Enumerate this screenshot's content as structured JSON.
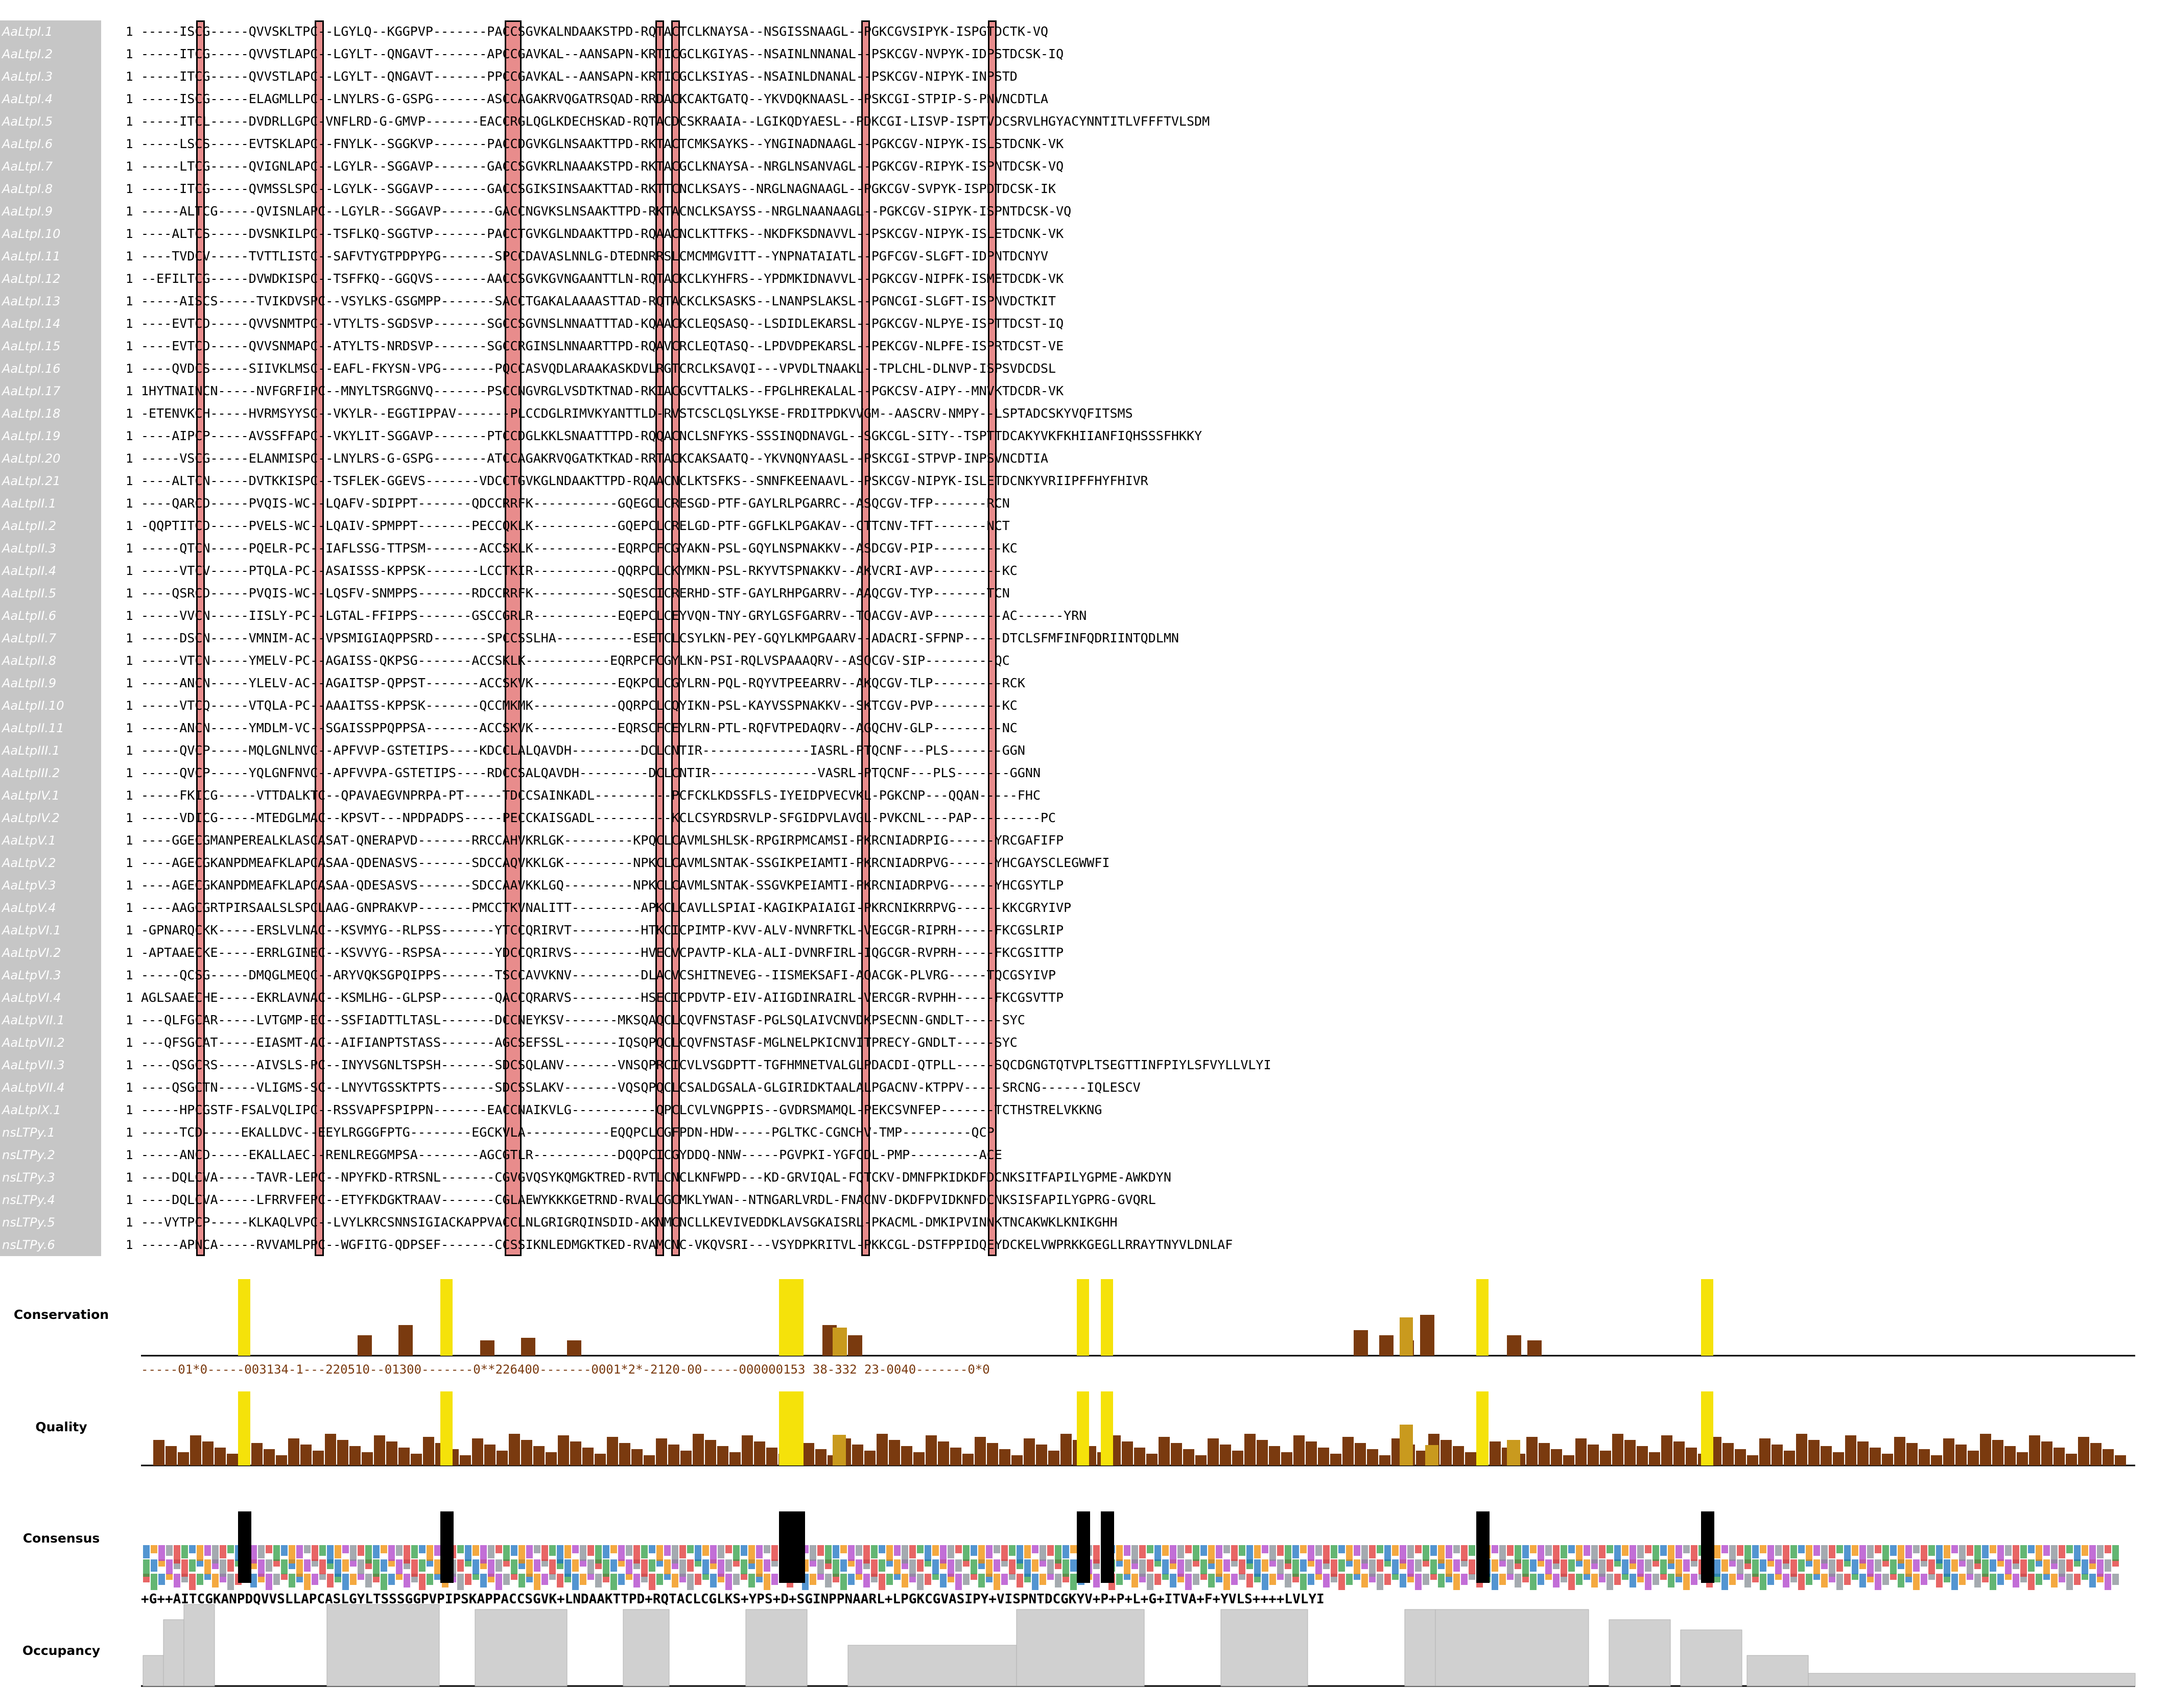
{
  "alignment": {
    "start_number": "1",
    "rows": [
      {
        "name": "AaLtpI.1",
        "seq": "-----ISCG-----QVVSKLTPC--LGYLQ--KGGPVP-------PACCSGVKALNDAAKSTPD-RQTACTCLKNAYSA--NSGISSNAAGL--PGKCGVSIPYK-ISPGTDCTK-VQ"
      },
      {
        "name": "AaLtpI.2",
        "seq": "-----ITCG-----QVVSTLAPC--LGYLT--QNGAVT-------APCCGAVKAL--AANSAPN-KRTICGCLKGIYAS--NSAINLNNANAL--PSKCGV-NVPYK-IDPSTDCSK-IQ"
      },
      {
        "name": "AaLtpI.3",
        "seq": "-----ITCG-----QVVSTLAPC--LGYLT--QNGAVT-------PPCCGAVKAL--AANSAPN-KRTICGCLKSIYAS--NSAINLDNANAL--PSKCGV-NIPYK-INPSTD"
      },
      {
        "name": "AaLtpI.4",
        "seq": "-----ISCG-----ELAGMLLPC--LNYLRS-G-GSPG-------ASCCAGAKRVQGATRSQAD-RRDACKCAKTGATQ--YKVDQKNAASL--PSKCGI-STPIP-S-PNVNCDTLA"
      },
      {
        "name": "AaLtpI.5",
        "seq": "-----ITCL-----DVDRLLGPC-VNFLRD-G-GMVP-------EACCRGLQGLKDECHSKAD-RQTACDCSKRAAIA--LGIKQDYAESL--PDKCGI-LISVP-ISPTVDCSRVLHGYACYNNTITLVFFFTVLSDM"
      },
      {
        "name": "AaLtpI.6",
        "seq": "-----LSCS-----EVTSKLAPC--FNYLK--SGGKVP-------PACCDGVKGLNSAAKTTPD-RKTACTCMKSAYKS--YNGINADNAAGL--PGKCGV-NIPYK-ISLSTDCNK-VK"
      },
      {
        "name": "AaLtpI.7",
        "seq": "-----LTCG-----QVIGNLAPC--LGYLR--SGGAVP-------GACCSGVKRLNAAAKSTPD-RKTACGCLKNAYSA--NRGLNSANVAGL--PGKCGV-RIPYK-ISPNTDCSK-VQ"
      },
      {
        "name": "AaLtpI.8",
        "seq": "-----ITCG-----QVMSSLSPC--LGYLK--SGGAVP-------GACCSGIKSINSAAKTTAD-RKTTCNCLKSAYS--NRGLNAGNAAGL--PGKCGV-SVPYK-ISPDTDCSK-IK"
      },
      {
        "name": "AaLtpI.9",
        "seq": "-----ALTCG-----QVISNLAPC--LGYLR--SGGAVP-------GACCNGVKSLNSAAKTTPD-RKTACNCLKSAYSS--NRGLNAANAAGL--PGKCGV-SIPYK-ISPNTDCSK-VQ"
      },
      {
        "name": "AaLtpI.10",
        "seq": "----ALTCS-----DVSNKILPC--TSFLKQ-SGGTVP-------PACCTGVKGLNDAAKTTPD-RQAACNCLKTTFKS--NKDFKSDNAVVL--PSKCGV-NIPYK-ISLETDCNK-VK"
      },
      {
        "name": "AaLtpI.11",
        "seq": "----TVDCV-----TVTTLISTC--SAFVTYGTPDPYPG-------SPCCDAVASLNNLG-DTEDNRRSLCMCMMGVITT--YNPNATAIATL--PGFCGV-SLGFT-IDPNTDCNYV"
      },
      {
        "name": "AaLtpI.12",
        "seq": "--EFILTCG-----DVWDKISPC--TSFFKQ--GGQVS-------AACCSGVKGVNGAANTTLN-RQTACKCLKYHFRS--YPDMKIDNAVVL--PGKCGV-NIPFK-ISMETDCDK-VK"
      },
      {
        "name": "AaLtpI.13",
        "seq": "-----AISCS-----TVIKDVSPC--VSYLKS-GSGMPP-------SACCTGAKALAAAASTTAD-RQTACKCLKSASKS--LNANPSLAKSL--PGNCGI-SLGFT-ISPNVDCTKIT"
      },
      {
        "name": "AaLtpI.14",
        "seq": "----EVTCD-----QVVSNMTPC--VTYLTS-SGDSVP-------SGCCSGVNSLNNAATTTAD-KQAACKCLEQSASQ--LSDIDLEKARSL--PGKCGV-NLPYE-ISPTTDCST-IQ"
      },
      {
        "name": "AaLtpI.15",
        "seq": "----EVTCD-----QVVSNMAPC--ATYLTS-NRDSVP-------SGCCRGINSLNNAARTTPD-RQAVCRCLEQTASQ--LPDVDPEKARSL--PEKCGV-NLPFE-ISPRTDCST-VE"
      },
      {
        "name": "AaLtpI.16",
        "seq": "----QVDCS-----SIIVKLMSC--EAFL-FKYSN-VPG-------PQCCASVQDLARAAKASKDVLRGTCRCLKSAVQI---VPVDLTNAAKL--TPLCHL-DLNVP-ISPSVDCDSL"
      },
      {
        "name": "AaLtpI.17",
        "seq": "1HYTNAINCN-----NVFGRFIPC--MNYLTSRGGNVQ-------PSCCNGVRGLVSDTKTNAD-RKIACGCVTTALKS--FPGLHREKALAL--PGKCSV-AIPY--MNVKTDCDR-VK"
      },
      {
        "name": "AaLtpI.18",
        "seq": "-ETENVKCH-----HVRMSYYSC--VKYLR--EGGTIPPAV-------PLCCDGLRIMVKYANTTLD-RVSTCSCLQSLYKSE-FRDITPDKVVGM--AASCRV-NMPY--LSPTADCSKYVQFITSMS"
      },
      {
        "name": "AaLtpI.19",
        "seq": "----AIPCP-----AVSSFFAPC--VKYLIT-SGGAVP-------PTCCDGLKKLSNAATTTPD-RQQACNCLSNFYKS-SSSINQDNAVGL--SGKCGL-SITY--TSPTTDCAKYVKFKHIIANFIQHSSSFHKKY"
      },
      {
        "name": "AaLtpI.20",
        "seq": "-----VSCG-----ELANMISPC--LNYLRS-G-GSPG-------ATCCAGAKRVQGATKTKAD-RRTACKCAKSAATQ--YKVNQNYAASL--PSKCGI-STPVP-INPSVNCDTIA"
      },
      {
        "name": "AaLtpI.21",
        "seq": "----ALTCN-----DVTKKISPC--TSFLEK-GGEVS-------VDCCTGVKGLNDAAKTTPD-RQAACNCLKTSFKS--SNNFKEENAAVL--PSKCGV-NIPYK-ISLETDCNKYVRIIPFFHYFHIVR"
      },
      {
        "name": "AaLtpII.1",
        "seq": "----QARCD-----PVQIS-WC--LQAFV-SDIPPT-------QDCCRRFK-----------GQEGCLCRESGD-PTF-GAYLRLPGARRC--ASQCGV-TFP-------RCN"
      },
      {
        "name": "AaLtpII.2",
        "seq": "-QQPTITCD-----PVELS-WC--LQAIV-SPMPPT-------PECCQKLK-----------GQEPCLCRELGD-PTF-GGFLKLPGAKAV--CTTCNV-TFT-------NCT"
      },
      {
        "name": "AaLtpII.3",
        "seq": "-----QTCN-----PQELR-PC--IAFLSSG-TTPSM-------ACCSKLK-----------EQRPCFCGYAKN-PSL-GQYLNSPNAKKV--ASDCGV-PIP---------KC"
      },
      {
        "name": "AaLtpII.4",
        "seq": "-----VTCV-----PTQLA-PC--ASAISSS-KPPSK-------LCCTKIR-----------QQRPCLCKYMKN-PSL-RKYVTSPNAKKV--AKVCRI-AVP---------KC"
      },
      {
        "name": "AaLtpII.5",
        "seq": "----QSRCD-----PVQIS-WC--LQSFV-SNMPPS-------RDCCRRFK-----------SQESCICRERHD-STF-GAYLRHPGARRV--AAQCGV-TYP-------TCN"
      },
      {
        "name": "AaLtpII.6",
        "seq": "-----VVCN-----IISLY-PC--LGTAL-FFIPPS-------GSCCGRLR-----------EQEPCLCEYVQN-TNY-GRYLGSFGARRV--TQACGV-AVP---------AC------YRN"
      },
      {
        "name": "AaLtpII.7",
        "seq": "-----DSCN-----VMNIM-AC--VPSMIGIAQPPSRD-------SPCCSSLHA----------ESETCLCSYLKN-PEY-GQYLKMPGAARV--ADACRI-SFPNP-----DTCLSFMFINFQDRIINTQDLMN"
      },
      {
        "name": "AaLtpII.8",
        "seq": "-----VTCN-----YMELV-PC--AGAISS-QKPSG-------ACCSKLK-----------EQRPCFCGYLKN-PSI-RQLVSPAAAQRV--ASQCGV-SIP---------QC"
      },
      {
        "name": "AaLtpII.9",
        "seq": "-----ANCN-----YLELV-AC--AGAITSP-QPPST-------ACCSKVK-----------EQKPCLCGYLRN-PQL-RQYVTPEEARRV--AKQCGV-TLP---------RCK"
      },
      {
        "name": "AaLtpII.10",
        "seq": "-----VTCQ-----VTQLA-PC--AAAITSS-KPPSK-------QCCMKMK-----------QQRPCLCQYIKN-PSL-KAYVSSPNAKKV--SKTCGV-PVP---------KC"
      },
      {
        "name": "AaLtpII.11",
        "seq": "-----ANCN-----YMDLM-VC--SGAISSPPQPPSA-------ACCSKVK-----------EQRSCFCEYLRN-PTL-RQFVTPEDAQRV--AGQCHV-GLP---------NC"
      },
      {
        "name": "AaLtpIII.1",
        "seq": "-----QVCP-----MQLGNLNVC--APFVVP-GSTETIPS----KDCCLALQAVDH---------DCLCNTIR--------------IASRL-PTQCNF---PLS-------GGN"
      },
      {
        "name": "AaLtpIII.2",
        "seq": "-----QVCP-----YQLGNFNVC--APFVVPA-GSTETIPS----RDCCSALQAVDH---------DCLCNTIR--------------VASRL-PTQCNF---PLS-------GGNN"
      },
      {
        "name": "AaLtpIV.1",
        "seq": "-----FKICG-----VTTDALKTC--QPAVAEGVNPRPA-PT-----TDCCSAINKADL----------PCFCKLKDSSFLS-IYEIDPVECVKL-PGKCNP---QQAN-----FHC"
      },
      {
        "name": "AaLtpIV.2",
        "seq": "-----VDICG-----MTEDGLMAC--KPSVT---NPDPADPS-----PECCKAISGADL----------KCLCSYRDSRVLP-SFGIDPVLAVGL-PVKCNL---PAP---------PC"
      },
      {
        "name": "AaLtpV.1",
        "seq": "----GGECGMANPEREALKLASCASAT-QNERAPVD-------RRCCAHVKRLGK---------KPQCLCAVMLSHLSK-RPGIRPMCAMSI-PKRCNIADRPIG------YRCGAFIFP"
      },
      {
        "name": "AaLtpV.2",
        "seq": "----AGECGKANPDMEAFKLAPCASAA-QDENASVS-------SDCCAQVKKLGK---------NPKCLCAVMLSNTAK-SSGIKPEIAMTI-PKRCNIADRPVG------YHCGAYSCLEGWWFI"
      },
      {
        "name": "AaLtpV.3",
        "seq": "----AGECGKANPDMEAFKLAPCASAA-QDESASVS-------SDCCAAVKKLGQ---------NPKCLCAVMLSNTAK-SSGVKPEIAMTI-PKRCNIADRPVG------YHCGSYTLP"
      },
      {
        "name": "AaLtpV.4",
        "seq": "----AAGCGRTPIRSAALSLSPCLAAG-GNPRAKVP-------PMCCTKVNALITT---------APKCLCAVLLSPIAI-KAGIKPAIAIGI-PKRCNIKRRPVG------KKCGRYIVP"
      },
      {
        "name": "AaLtpVI.1",
        "seq": "-GPNARQCKK-----ERSLVLNAC--KSVMYG--RLPSS-------YTCCQRIRVT---------HTKCICPIMTP-KVV-ALV-NVNRFTKL-VEGCGR-RIPRH-----FKCGSLRIP"
      },
      {
        "name": "AaLtpVI.2",
        "seq": "-APTAAECKE-----ERRLGINEC--KSVVYG--RSPSA-------YDCCQRIRVS---------HVECVCPAVTP-KLA-ALI-DVNRFIRL-IQGCGR-RVPRH-----FKCGSITTP"
      },
      {
        "name": "AaLtpVI.3",
        "seq": "-----QCSG-----DMQGLMEQC--ARYVQKSGPQIPPS-------TSCCAVVKNV---------DLACVCSHITNEVEG--IISMEKSAFI-AQACGK-PLVRG-----TQCGSYIVP"
      },
      {
        "name": "AaLtpVI.4",
        "seq": "AGLSAAECHE-----EKRLAVNAC--KSMLHG--GLPSP-------QACCQRARVS---------HSECICPDVTP-EIV-AIIGDINRAIRL-VERCGR-RVPHH-----FKCGSVTTP"
      },
      {
        "name": "AaLtpVII.1",
        "seq": "---QLFGCAR-----LVTGMP-EC--SSFIADTTLTASL-------DCCNEYKSV-------MKSQAQCLCQVFNSTASF-PGLSQLAIVCNVDKPSECNN-GNDLT-----SYC"
      },
      {
        "name": "AaLtpVII.2",
        "seq": "---QFSGCAT-----EIASMT-AC--AIFIANPTSTASS-------AGCSEFSSL-------IQSQPQCLCQVFNSTASF-MGLNELPKICNVITPRECY-GNDLT-----SYC"
      },
      {
        "name": "AaLtpVII.3",
        "seq": "----QSGCRS-----AIVSLS-PC--INYVSGNLTSPSH-------SDCSQLANV-------VNSQPRCICVLVSGDPTT-TGFHMNETVALGLPDACDI-QTPLL-----SQCDGNGTQTVPLTSEGTTINFPIYLSFVYLLVLYI"
      },
      {
        "name": "AaLtpVII.4",
        "seq": "----QSGCTN-----VLIGMS-SC--LNYVTGSSKTPTS-------SDCSSLAKV-------VQSQPQCLCSALDGSALA-GLGIRIDKTAALALPGACNV-KTPPV-----SRCNG------IQLESCV"
      },
      {
        "name": "AaLtpIX.1",
        "seq": "-----HPCGSTF-FSALVQLIPC--RSSVAPFSPIPPN-------EACCNAIKVLG-----------QPCLCVLVNGPPIS--GVDRSMAMQL-PEKCSVNFEP-------TCTHSTRELVKKNG"
      },
      {
        "name": "nsLTPy.1",
        "seq": "-----TCD-----EKALLDVC--EEYLRGGGFPTG--------EGCKVLA-----------EQQPCLCGFPDN-HDW-----PGLTKC-CGNCHV-TMP---------QCP"
      },
      {
        "name": "nsLTPy.2",
        "seq": "-----ANCD-----EKALLAEC--RENLREGGMPSA--------AGCGTLR-----------DQQPCICGYDDQ-NNW-----PGVPKI-YGFCDL-PMP---------ACE"
      },
      {
        "name": "nsLTPy.3",
        "seq": "----DQLCVA-----TAVR-LEPC--NPYFKD-RTRSNL-------CGVGVQSYKQMGKTRED-RVTLCNCLKNFWPD---KD-GRVIQAL-FQTCKV-DMNFPKIDKDFDCNKSITFAPILYGPME-AWKDYN"
      },
      {
        "name": "nsLTPy.4",
        "seq": "----DQLCVA-----LFRRVFEPC--ETYFKDGKTRAAV-------CGLAEWYKKKGETRND-RVALCGCMKLYWAN--NTNGARLVRDL-FNACNV-DKDFPVIDKNFDCNKSISFAPILYGPRG-GVQRL"
      },
      {
        "name": "nsLTPy.5",
        "seq": "---VYTPCP-----KLKAQLVPC--LVYLKRCSNNSIGIACKAPPVACCLNLGRIGRQINSDID-AKNMCNCLLKEVIVEDDKLAVSGKAISRL-PKACML-DMKIPVINNKTNCAKWKLKNIKGHH"
      },
      {
        "name": "nsLTPy.6",
        "seq": "-----APNCA-----RVVAMLPPC--WGFITG-QDPSEF-------CCSSIKNLEDMGKTKED-RVAMCNC-VKQVSRI---VSYDPKRITVL-PKKCGL-DSTFPPIDQEYDCKELVWPRKKGEGLLRRAYTNYVLDNLAF"
      }
    ]
  },
  "annotations": {
    "conservation": {
      "label": "Conservation",
      "numbers": "-----01*0-----003134-1---220510--01300-------0**226400-------0001*2*-2120-00-----000000153 38-332 23-0040-------0*0"
    },
    "quality": {
      "label": "Quality"
    },
    "consensus": {
      "label": "Consensus",
      "sequence": "+G++AITCGKANPDQVVSLLAPCASLGYLTSSSGGPVPIPSKAPPACCSGVK+LNDAAKTTPD+RQTACLCGLKS+YPS+D+SGINPPNAARL+LPGKCGVASIPY+VISPNTDCGKYV+P+P+L+G+ITVA+F+YVLS++++LVLYI"
    },
    "occupancy": {
      "label": "Occupancy"
    }
  },
  "colors": {
    "name_panel": "#c6c6c6",
    "cys_highlight": "#e88c8c",
    "bar_yellow": "#f5e20a",
    "bar_brown": "#7a3a0f",
    "bar_gold": "#c99a1e",
    "occupancy_gray": "#d0d0d0"
  }
}
